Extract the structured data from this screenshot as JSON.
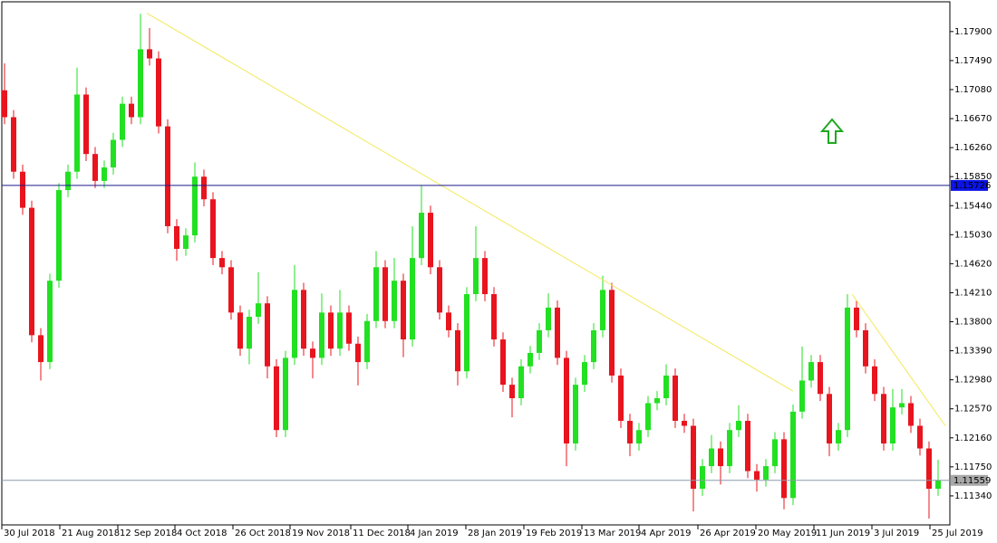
{
  "chart_data": {
    "type": "candlestick",
    "up_color": "#22e022",
    "down_color": "#e8141e",
    "open": [
      1.1707,
      1.1669,
      1.1592,
      1.1541,
      1.1361,
      1.1323,
      1.1438,
      1.1566,
      1.1592,
      1.1701,
      1.1617,
      1.1579,
      1.1598,
      1.1637,
      1.1688,
      1.1669,
      1.1765,
      1.1752,
      1.1656,
      1.1515,
      1.1483,
      1.1502,
      1.1585,
      1.1553,
      1.147,
      1.1457,
      1.1393,
      1.1342,
      1.1387,
      1.1406,
      1.1317,
      1.1227,
      1.1329,
      1.1425,
      1.1342,
      1.1329,
      1.1393,
      1.1342,
      1.1393,
      1.1349,
      1.1323,
      1.1381,
      1.1457,
      1.1381,
      1.1438,
      1.1355,
      1.147,
      1.1534,
      1.1457,
      1.1393,
      1.1368,
      1.131,
      1.1419,
      1.147,
      1.1419,
      1.1355,
      1.1291,
      1.1272,
      1.1317,
      1.1336,
      1.1368,
      1.14,
      1.1329,
      1.1208,
      1.1291,
      1.1323,
      1.1368,
      1.1425,
      1.1304,
      1.124,
      1.1208,
      1.1227,
      1.1265,
      1.1272,
      1.1304,
      1.124,
      1.1233,
      1.1144,
      1.1176,
      1.1201,
      1.1176,
      1.1227,
      1.124,
      1.1169,
      1.1157,
      1.1176,
      1.1214,
      1.1131,
      1.1253,
      1.1297,
      1.1323,
      1.1278,
      1.1208,
      1.1227,
      1.14,
      1.1368,
      1.1317,
      1.1278,
      1.1208,
      1.1259,
      1.1265,
      1.1233,
      1.1201,
      1.1144
    ],
    "high": [
      1.1745,
      1.1679,
      1.1602,
      1.1551,
      1.1371,
      1.1448,
      1.1576,
      1.1602,
      1.1739,
      1.1711,
      1.1627,
      1.1608,
      1.1647,
      1.1698,
      1.1698,
      1.1815,
      1.1795,
      1.1762,
      1.1666,
      1.1525,
      1.1512,
      1.1605,
      1.1595,
      1.1563,
      1.148,
      1.1467,
      1.1403,
      1.1397,
      1.145,
      1.1416,
      1.1327,
      1.1339,
      1.146,
      1.1435,
      1.1352,
      1.142,
      1.1403,
      1.1425,
      1.1403,
      1.1359,
      1.1391,
      1.148,
      1.1467,
      1.147,
      1.1448,
      1.1515,
      1.1573,
      1.1544,
      1.1467,
      1.1403,
      1.1378,
      1.1429,
      1.1515,
      1.148,
      1.1429,
      1.1365,
      1.1301,
      1.1327,
      1.1346,
      1.1378,
      1.142,
      1.141,
      1.1339,
      1.1301,
      1.1333,
      1.1378,
      1.1445,
      1.1435,
      1.1314,
      1.125,
      1.1237,
      1.1275,
      1.1282,
      1.132,
      1.1314,
      1.125,
      1.1243,
      1.1186,
      1.122,
      1.1211,
      1.1237,
      1.1262,
      1.125,
      1.1179,
      1.1186,
      1.1224,
      1.1224,
      1.1263,
      1.1345,
      1.1333,
      1.1333,
      1.1288,
      1.1237,
      1.1419,
      1.141,
      1.1378,
      1.1327,
      1.1288,
      1.1285,
      1.1285,
      1.1275,
      1.1243,
      1.1211,
      1.1185
    ],
    "low": [
      1.1659,
      1.1582,
      1.1531,
      1.1351,
      1.1297,
      1.1313,
      1.1428,
      1.1556,
      1.1582,
      1.1607,
      1.1569,
      1.1569,
      1.1588,
      1.1627,
      1.1659,
      1.1659,
      1.1742,
      1.1646,
      1.1505,
      1.1466,
      1.1473,
      1.1492,
      1.1543,
      1.146,
      1.1447,
      1.1383,
      1.1332,
      1.132,
      1.1377,
      1.13,
      1.1217,
      1.1217,
      1.1319,
      1.1332,
      1.13,
      1.1319,
      1.1332,
      1.1332,
      1.1339,
      1.129,
      1.1313,
      1.1371,
      1.1371,
      1.1371,
      1.133,
      1.1345,
      1.146,
      1.1447,
      1.1383,
      1.1358,
      1.129,
      1.13,
      1.1409,
      1.1409,
      1.1345,
      1.1281,
      1.1245,
      1.1262,
      1.1307,
      1.1326,
      1.1358,
      1.1319,
      1.1176,
      1.1198,
      1.1281,
      1.1313,
      1.1358,
      1.1294,
      1.123,
      1.119,
      1.1198,
      1.1217,
      1.1255,
      1.1262,
      1.123,
      1.1223,
      1.1112,
      1.1134,
      1.1166,
      1.115,
      1.1166,
      1.1217,
      1.1159,
      1.114,
      1.1147,
      1.1166,
      1.1115,
      1.1121,
      1.1243,
      1.1287,
      1.1268,
      1.119,
      1.1198,
      1.1217,
      1.1358,
      1.1307,
      1.1268,
      1.1198,
      1.1198,
      1.1249,
      1.1223,
      1.1191,
      1.1102,
      1.1134
    ],
    "close": [
      1.1669,
      1.1592,
      1.1541,
      1.1361,
      1.1323,
      1.1438,
      1.1566,
      1.1592,
      1.1701,
      1.1617,
      1.1579,
      1.1598,
      1.1637,
      1.1688,
      1.1669,
      1.1765,
      1.1752,
      1.1656,
      1.1515,
      1.1483,
      1.1502,
      1.1585,
      1.1553,
      1.147,
      1.1457,
      1.1393,
      1.1342,
      1.1387,
      1.1406,
      1.1317,
      1.1227,
      1.1329,
      1.1425,
      1.1342,
      1.1329,
      1.1393,
      1.1342,
      1.1393,
      1.1349,
      1.1323,
      1.1381,
      1.1457,
      1.1381,
      1.1438,
      1.1355,
      1.147,
      1.1534,
      1.1457,
      1.1393,
      1.1368,
      1.131,
      1.1419,
      1.147,
      1.1419,
      1.1355,
      1.1291,
      1.1272,
      1.1317,
      1.1336,
      1.1368,
      1.14,
      1.1329,
      1.1208,
      1.1291,
      1.1323,
      1.1368,
      1.1425,
      1.1304,
      1.124,
      1.1208,
      1.1227,
      1.1265,
      1.1272,
      1.1304,
      1.124,
      1.1233,
      1.1144,
      1.1176,
      1.1201,
      1.1176,
      1.1227,
      1.124,
      1.1169,
      1.1157,
      1.1176,
      1.1214,
      1.1131,
      1.1253,
      1.1297,
      1.1323,
      1.1278,
      1.1208,
      1.1227,
      1.14,
      1.1368,
      1.1317,
      1.1278,
      1.1208,
      1.1259,
      1.1265,
      1.1233,
      1.1201,
      1.1144,
      1.1156
    ],
    "xlim": [
      -0.5,
      104.3
    ],
    "xticks": [
      {
        "value": -0.3,
        "label": "30 Jul 2018"
      },
      {
        "value": 6.1,
        "label": "21 Aug 2018"
      },
      {
        "value": 12.5,
        "label": "12 Sep 2018"
      },
      {
        "value": 18.8,
        "label": "4 Oct 2018"
      },
      {
        "value": 25.2,
        "label": "26 Oct 2018"
      },
      {
        "value": 31.5,
        "label": "19 Nov 2018"
      },
      {
        "value": 38.2,
        "label": "11 Dec 2018"
      },
      {
        "value": 44.5,
        "label": "4 Jan 2019"
      },
      {
        "value": 50.9,
        "label": "28 Jan 2019"
      },
      {
        "value": 57.3,
        "label": "19 Feb 2019"
      },
      {
        "value": 63.7,
        "label": "13 Mar 2019"
      },
      {
        "value": 70,
        "label": "4 Apr 2019"
      },
      {
        "value": 76.5,
        "label": "26 Apr 2019"
      },
      {
        "value": 82.9,
        "label": "20 May 2019"
      },
      {
        "value": 89.3,
        "label": "11 Jun 2019"
      },
      {
        "value": 95.7,
        "label": "3 Jul 2019"
      },
      {
        "value": 102.1,
        "label": "25 Jul 2019"
      }
    ],
    "ylim": [
      1.1093,
      1.1832
    ],
    "yticks": [
      {
        "value": 1.179,
        "label": "1.17900"
      },
      {
        "value": 1.1749,
        "label": "1.17490"
      },
      {
        "value": 1.1708,
        "label": "1.17080"
      },
      {
        "value": 1.1667,
        "label": "1.16670"
      },
      {
        "value": 1.1626,
        "label": "1.16260"
      },
      {
        "value": 1.1585,
        "label": "1.15850"
      },
      {
        "value": 1.1544,
        "label": "1.15440"
      },
      {
        "value": 1.1503,
        "label": "1.15030"
      },
      {
        "value": 1.1462,
        "label": "1.14620"
      },
      {
        "value": 1.1421,
        "label": "1.14210"
      },
      {
        "value": 1.138,
        "label": "1.13800"
      },
      {
        "value": 1.1339,
        "label": "1.13390"
      },
      {
        "value": 1.1298,
        "label": "1.12980"
      },
      {
        "value": 1.1257,
        "label": "1.12570"
      },
      {
        "value": 1.1216,
        "label": "1.12160"
      },
      {
        "value": 1.1175,
        "label": "1.11750"
      },
      {
        "value": 1.1134,
        "label": "1.11340"
      }
    ],
    "levels": [
      {
        "value": 1.15726,
        "label": "1.15726",
        "color": "#1a1a8c",
        "label_color": "#ffffff",
        "box_color": "#0a14e6"
      },
      {
        "value": 1.11559,
        "label": "1.11559",
        "color": "#8a9aa8",
        "label_color": "#000000",
        "box_color": "#a8a8a8"
      }
    ],
    "trendline_color": "#f2e85a",
    "trendlines": [
      {
        "from": [
          15.7,
          1.1816
        ],
        "to": [
          87,
          1.1282
        ]
      },
      {
        "from": [
          93.5,
          1.1419
        ],
        "to": [
          103.8,
          1.1233
        ]
      }
    ]
  }
}
